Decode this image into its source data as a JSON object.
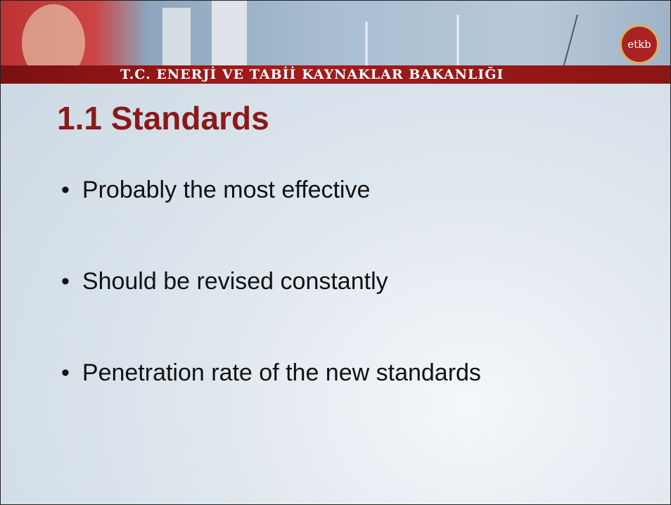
{
  "header": {
    "ministry": "T.C. ENERJİ VE TABİİ KAYNAKLAR BAKANLIĞI",
    "logo": "etkb"
  },
  "slide": {
    "title": "1.1 Standards",
    "bullets": [
      "Probably the most effective",
      "Should be revised constantly",
      "Penetration rate of the new standards"
    ]
  }
}
